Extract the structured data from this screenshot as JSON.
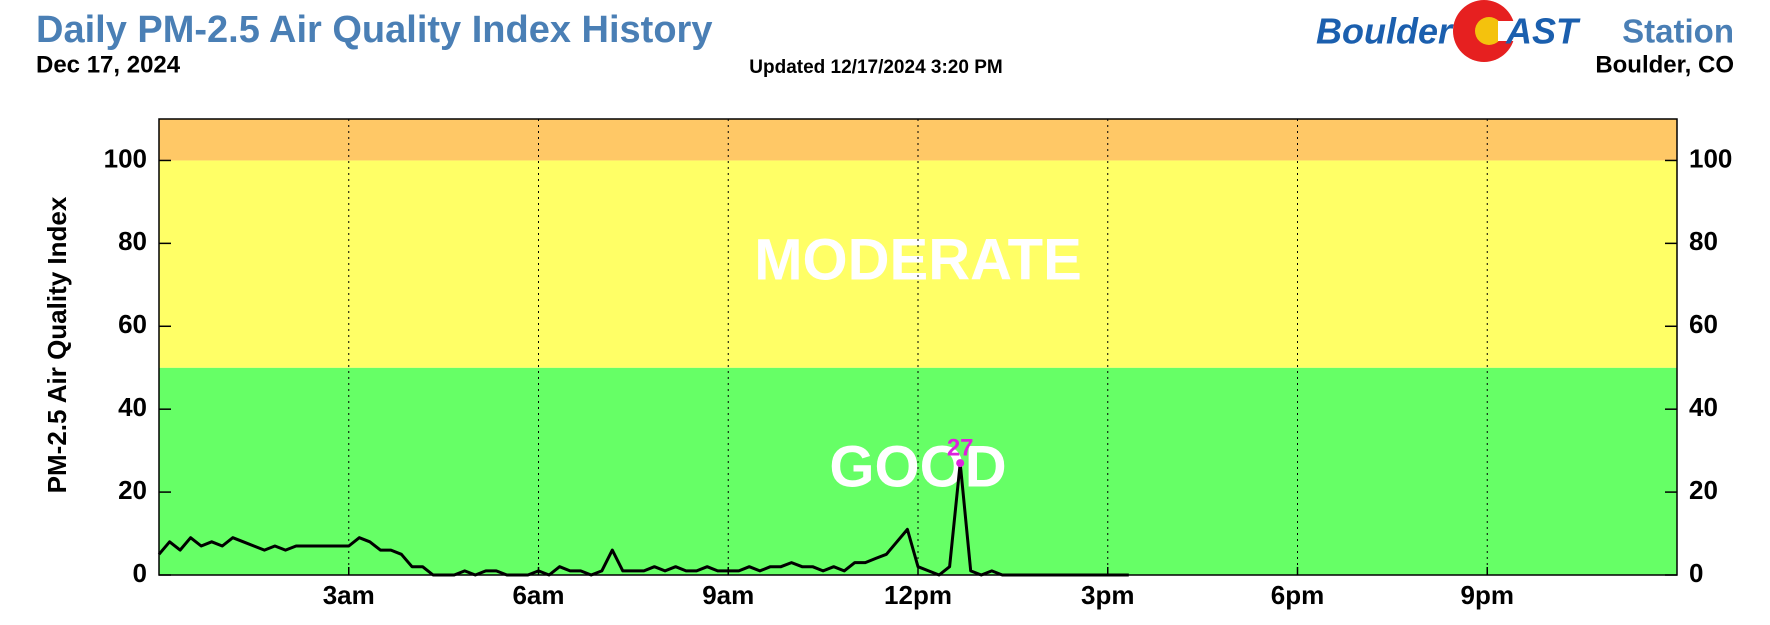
{
  "chart_data": {
    "type": "line",
    "title": "Daily PM-2.5 Air Quality Index History",
    "subtitle": "Dec 17, 2024",
    "updated": "Updated 12/17/2024 3:20 PM",
    "logo": {
      "left": "Boulder",
      "right": "AST"
    },
    "station_label": "Station",
    "location": "Boulder, CO",
    "y_label": "PM-2.5 Air Quality Index",
    "xlim": [
      0,
      24
    ],
    "xticks": [
      {
        "value": 3,
        "label": "3am"
      },
      {
        "value": 6,
        "label": "6am"
      },
      {
        "value": 9,
        "label": "9am"
      },
      {
        "value": 12,
        "label": "12pm"
      },
      {
        "value": 15,
        "label": "3pm"
      },
      {
        "value": 18,
        "label": "6pm"
      },
      {
        "value": 21,
        "label": "9pm"
      }
    ],
    "ylim": [
      0,
      110
    ],
    "yticks": [
      0,
      20,
      40,
      60,
      80,
      100
    ],
    "bands": [
      {
        "label": "GOOD",
        "from": 0,
        "to": 50,
        "color": "#66ff66"
      },
      {
        "label": "MODERATE",
        "from": 50,
        "to": 100,
        "color": "#ffff66"
      },
      {
        "from": 100,
        "to": 110,
        "color": "#ffc866"
      }
    ],
    "color": "#000000",
    "x": [
      0,
      0.167,
      0.333,
      0.5,
      0.667,
      0.833,
      1,
      1.167,
      1.333,
      1.5,
      1.667,
      1.833,
      2,
      2.167,
      2.333,
      2.5,
      2.667,
      2.833,
      3,
      3.167,
      3.333,
      3.5,
      3.667,
      3.833,
      4,
      4.167,
      4.333,
      4.5,
      4.667,
      4.833,
      5,
      5.167,
      5.333,
      5.5,
      5.667,
      5.833,
      6,
      6.167,
      6.333,
      6.5,
      6.667,
      6.833,
      7,
      7.167,
      7.333,
      7.5,
      7.667,
      7.833,
      8,
      8.167,
      8.333,
      8.5,
      8.667,
      8.833,
      9,
      9.167,
      9.333,
      9.5,
      9.667,
      9.833,
      10,
      10.167,
      10.333,
      10.5,
      10.667,
      10.833,
      11,
      11.167,
      11.333,
      11.5,
      11.667,
      11.833,
      12,
      12.167,
      12.333,
      12.5,
      12.667,
      12.833,
      13,
      13.167,
      13.333,
      13.5,
      13.667,
      13.833,
      14,
      14.167,
      14.333,
      14.5,
      14.667,
      14.833,
      15,
      15.167,
      15.333
    ],
    "values": [
      5,
      8,
      6,
      9,
      7,
      8,
      7,
      9,
      8,
      7,
      6,
      7,
      6,
      7,
      7,
      7,
      7,
      7,
      7,
      9,
      8,
      6,
      6,
      5,
      2,
      2,
      0,
      0,
      0,
      1,
      0,
      1,
      1,
      0,
      0,
      0,
      1,
      0,
      2,
      1,
      1,
      0,
      1,
      6,
      1,
      1,
      1,
      2,
      1,
      2,
      1,
      1,
      2,
      1,
      1,
      1,
      2,
      1,
      2,
      2,
      3,
      2,
      2,
      1,
      2,
      1,
      3,
      3,
      4,
      5,
      8,
      11,
      2,
      1,
      0,
      2,
      27,
      1,
      0,
      1,
      0,
      0,
      0,
      0,
      0,
      0,
      0,
      0,
      0,
      0,
      0,
      0,
      0
    ],
    "peak": {
      "x": 12.667,
      "value": 27,
      "color": "#dd22dd"
    }
  }
}
